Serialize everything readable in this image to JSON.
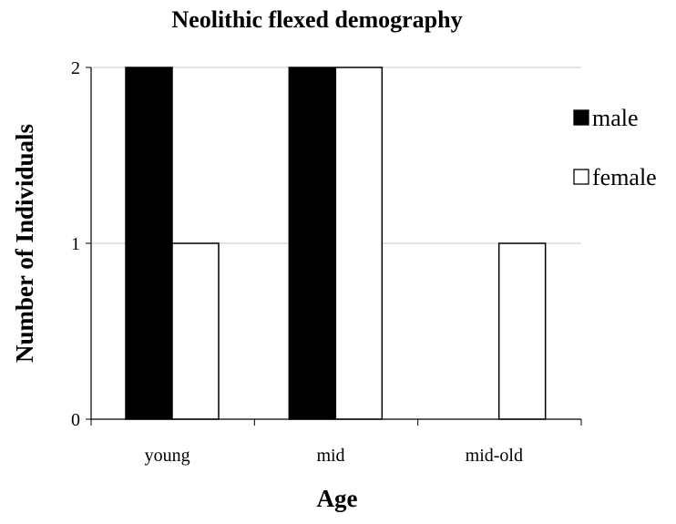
{
  "chart_data": {
    "type": "bar",
    "title": "Neolithic flexed demography",
    "xlabel": "Age",
    "ylabel": "Number of Individuals",
    "categories": [
      "young",
      "mid",
      "mid-old"
    ],
    "series": [
      {
        "name": "male",
        "values": [
          2,
          2,
          0
        ],
        "color": "#000000"
      },
      {
        "name": "female",
        "values": [
          1,
          2,
          1
        ],
        "color": "#ffffff"
      }
    ],
    "ylim": [
      0,
      2
    ],
    "yticks": [
      "0",
      "1",
      "2"
    ],
    "grid": true,
    "legend": "right"
  }
}
